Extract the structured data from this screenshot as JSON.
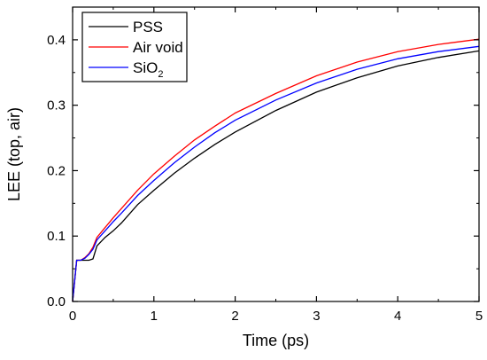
{
  "chart_data": {
    "type": "line",
    "xlabel": "Time (ps)",
    "ylabel": "LEE (top, air)",
    "xlim": [
      0,
      5
    ],
    "ylim": [
      0,
      0.45
    ],
    "xticks": [
      0,
      1,
      2,
      3,
      4,
      5
    ],
    "xtick_labels": [
      "0",
      "1",
      "2",
      "3",
      "4",
      "5"
    ],
    "yticks": [
      0.0,
      0.1,
      0.2,
      0.3,
      0.4
    ],
    "ytick_labels": [
      "0.0",
      "0.1",
      "0.2",
      "0.3",
      "0.4"
    ],
    "grid": false,
    "legend_position": "top-left",
    "series": [
      {
        "name": "PSS",
        "color": "#000000",
        "x": [
          0,
          0.05,
          0.1,
          0.2,
          0.25,
          0.3,
          0.4,
          0.5,
          0.6,
          0.8,
          1.0,
          1.25,
          1.5,
          1.75,
          2.0,
          2.5,
          3.0,
          3.5,
          4.0,
          4.5,
          5.0
        ],
        "y": [
          0,
          0.063,
          0.063,
          0.063,
          0.065,
          0.085,
          0.098,
          0.108,
          0.12,
          0.148,
          0.17,
          0.196,
          0.219,
          0.24,
          0.259,
          0.292,
          0.32,
          0.342,
          0.36,
          0.373,
          0.383
        ]
      },
      {
        "name": "Air void",
        "color": "#ff0000",
        "x": [
          0,
          0.05,
          0.1,
          0.15,
          0.2,
          0.25,
          0.3,
          0.4,
          0.5,
          0.6,
          0.8,
          1.0,
          1.25,
          1.5,
          1.75,
          2.0,
          2.5,
          3.0,
          3.5,
          4.0,
          4.5,
          5.0
        ],
        "y": [
          0,
          0.063,
          0.063,
          0.067,
          0.073,
          0.083,
          0.098,
          0.113,
          0.128,
          0.142,
          0.17,
          0.195,
          0.222,
          0.247,
          0.268,
          0.288,
          0.318,
          0.345,
          0.366,
          0.382,
          0.393,
          0.401
        ]
      },
      {
        "name": "SiO",
        "name_subscript": "2",
        "color": "#0000ff",
        "x": [
          0,
          0.05,
          0.1,
          0.15,
          0.2,
          0.25,
          0.3,
          0.4,
          0.5,
          0.6,
          0.8,
          1.0,
          1.25,
          1.5,
          1.75,
          2.0,
          2.5,
          3.0,
          3.5,
          4.0,
          4.5,
          5.0
        ],
        "y": [
          0,
          0.063,
          0.063,
          0.066,
          0.072,
          0.08,
          0.094,
          0.108,
          0.122,
          0.135,
          0.162,
          0.185,
          0.212,
          0.236,
          0.258,
          0.277,
          0.308,
          0.334,
          0.355,
          0.371,
          0.382,
          0.39
        ]
      }
    ]
  }
}
